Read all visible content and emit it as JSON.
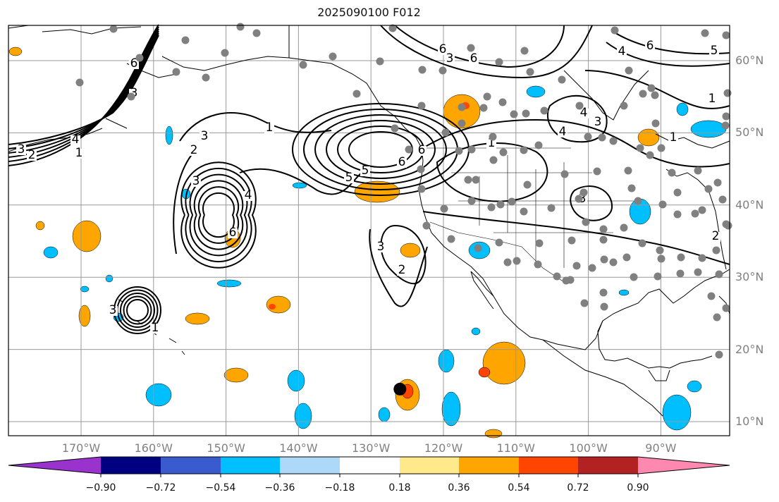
{
  "title": "2025090100 F012",
  "map": {
    "latitude_labels": [
      {
        "lat": 60,
        "label": "60°N"
      },
      {
        "lat": 50,
        "label": "50°N"
      },
      {
        "lat": 40,
        "label": "40°N"
      },
      {
        "lat": 30,
        "label": "30°N"
      },
      {
        "lat": 20,
        "label": "20°N"
      },
      {
        "lat": 10,
        "label": "10°N"
      }
    ],
    "longitude_labels": [
      {
        "lon": -170,
        "label": "170°W"
      },
      {
        "lon": -160,
        "label": "160°W"
      },
      {
        "lon": -150,
        "label": "150°W"
      },
      {
        "lon": -140,
        "label": "140°W"
      },
      {
        "lon": -130,
        "label": "130°W"
      },
      {
        "lon": -120,
        "label": "120°W"
      },
      {
        "lon": -110,
        "label": "110°W"
      },
      {
        "lon": -100,
        "label": "100°W"
      },
      {
        "lon": -90,
        "label": "90°W"
      }
    ],
    "extent": {
      "lon_min": -180,
      "lon_max": -80.5,
      "lat_min": 8,
      "lat_max": 65
    },
    "contour_labels": [
      "1",
      "2",
      "3",
      "4",
      "5",
      "6"
    ],
    "storm_marker": {
      "lon": -126.0,
      "lat": 14.5
    }
  },
  "colorbar": {
    "ticks": [
      "−0.90",
      "−0.72",
      "−0.54",
      "−0.36",
      "−0.18",
      "0.18",
      "0.36",
      "0.54",
      "0.72",
      "0.90"
    ],
    "colors": [
      "#9a32cd",
      "#000080",
      "#3a5bcd",
      "#00bfff",
      "#add8f7",
      "#ffffff",
      "#ffe98a",
      "#ffa500",
      "#ff4500",
      "#b22222",
      "#ff88b0"
    ]
  }
}
